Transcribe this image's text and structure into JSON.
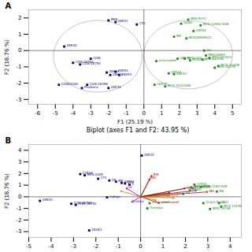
{
  "chart_data": [
    {
      "type": "scatter",
      "xlabel": "F1 (25.19 %)",
      "ylabel": "F2 (18.76 %)",
      "annotations": [
        "A"
      ],
      "xlim": [
        -6.5,
        5.5
      ],
      "ylim": [
        -3.3,
        2.5
      ],
      "xticks": [
        -6,
        -5,
        -4,
        -3,
        -2,
        -1,
        0,
        1,
        2,
        3,
        4,
        5
      ],
      "yticks": [
        -3,
        -2,
        -1,
        0,
        1,
        2
      ],
      "hlines": [
        0
      ],
      "vlines": [
        0
      ],
      "ellipses": [
        {
          "center": [
            -2.6,
            -0.35
          ],
          "rx": 2.5,
          "ry": 2.2,
          "color": "#aaaaaa"
        },
        {
          "center": [
            2.5,
            -0.25
          ],
          "rx": 2.5,
          "ry": 2.1,
          "color": "#aaaaaa"
        }
      ],
      "series": [
        {
          "color": "navy",
          "marker": "square",
          "x": [
            -4.8,
            -3.5,
            -3.2,
            -2.0,
            -4.0,
            -3.6,
            -4.5,
            -2.1,
            -1.9,
            -1.6,
            -1.4,
            -1.6,
            -0.4,
            -3.0,
            -2.0
          ],
          "y": [
            -2.1,
            -2.3,
            -2.1,
            -2.3,
            -0.75,
            -0.85,
            0.25,
            -1.35,
            -1.5,
            -1.3,
            -1.5,
            1.75,
            1.6,
            -0.5,
            1.85
          ],
          "labels": [
            "CGN20182",
            "Phulkara",
            "CGN-16356",
            "28534",
            "CGN-28762",
            "CGN-18750",
            "28540",
            "28933",
            "28934",
            "28553",
            "28953",
            "28531",
            "170",
            "CGN-",
            "MKS"
          ]
        },
        {
          "color": "#228B22",
          "marker": "square",
          "x": [
            2.5,
            2.1,
            3.2,
            2.8,
            1.7,
            2.4,
            3.7,
            3.3,
            2.6,
            0.7,
            4.2,
            4.0,
            0.6,
            1.2,
            1.4,
            1.7,
            1.9,
            2.3,
            3.5,
            3.4
          ],
          "y": [
            1.9,
            1.65,
            1.55,
            1.2,
            0.85,
            0.75,
            -0.45,
            -0.55,
            -0.6,
            -0.65,
            -0.95,
            -1.05,
            -2.1,
            -2.2,
            -1.4,
            -1.45,
            -0.5,
            -0.5,
            -0.3,
            0.0
          ],
          "labels": [
            "MKS-RLP1",
            "SAND",
            "MCS-12990-5GB",
            "28550",
            "MK",
            "MCS28985021",
            "MKS3823GO",
            "Sharpachad",
            "MCS1322",
            "onionsweet",
            "MCS-103GB",
            "MKS-16278",
            "28537",
            "MCS-301030W",
            "28520",
            "28553",
            "28516",
            "MKS1322",
            "MKS16993",
            "Var"
          ]
        }
      ]
    },
    {
      "type": "scatter",
      "title": "Biplot (axes F1 and F2: 43.95 %)",
      "ylabel": "F2 (18.76 %)",
      "annotations": [
        "B"
      ],
      "xlim": [
        -5.0,
        4.5
      ],
      "ylim": [
        -3.5,
        4.5
      ],
      "xticks": [
        -5,
        -4,
        -3,
        -2,
        -1,
        0,
        1,
        2,
        3,
        4
      ],
      "yticks": [
        -3,
        -2,
        -1,
        0,
        1,
        2,
        3,
        4
      ],
      "hlines": [
        0
      ],
      "vlines": [
        0
      ],
      "arrow_origin": [
        0.0,
        0.0
      ],
      "arrows": [
        {
          "x": 0.5,
          "y": 1.85,
          "color": "#cc0000",
          "label": "BW"
        },
        {
          "x": 0.4,
          "y": 1.55,
          "color": "#cc0000",
          "label": "BN"
        },
        {
          "x": 2.3,
          "y": 0.85,
          "color": "#228B22",
          "label": "MKS-ROPE"
        },
        {
          "x": 2.0,
          "y": 0.72,
          "color": "#cc0000",
          "label": "SAND"
        },
        {
          "x": 2.5,
          "y": 0.55,
          "color": "#8800cc"
        },
        {
          "x": 3.0,
          "y": 0.42,
          "color": "#cc0000",
          "label": "M6"
        },
        {
          "x": 1.8,
          "y": 0.32,
          "color": "#cc7700"
        },
        {
          "x": 1.3,
          "y": 0.1,
          "color": "#cc7700",
          "label": "Orig"
        },
        {
          "x": 1.5,
          "y": -0.1,
          "color": "#cc7700"
        },
        {
          "x": -0.65,
          "y": 0.75,
          "color": "#8800cc",
          "label": "OE"
        },
        {
          "x": -0.9,
          "y": 0.5,
          "color": "#cc7700"
        },
        {
          "x": 0.85,
          "y": -0.55,
          "color": "#cc0000",
          "label": "onionsweet"
        },
        {
          "x": -0.4,
          "y": -0.45,
          "color": "#8800cc",
          "label": "Indego"
        },
        {
          "x": 1.3,
          "y": 0.35,
          "color": "#8B0000"
        },
        {
          "x": 0.7,
          "y": -0.3,
          "color": "#cc7700"
        }
      ],
      "series": [
        {
          "color": "navy",
          "marker": "square",
          "x": [
            -4.5,
            -3.1,
            -2.9,
            -2.3,
            -1.5,
            -2.7,
            -2.5,
            -1.9,
            -1.4,
            -1.1,
            -0.85,
            -0.7,
            -0.5,
            0.05
          ],
          "y": [
            -0.35,
            -0.6,
            -0.7,
            -2.9,
            -0.05,
            1.95,
            1.85,
            1.55,
            1.4,
            1.3,
            1.2,
            1.15,
            1.05,
            3.55
          ],
          "labels": [
            "28540",
            "CGN-28762",
            "CGN-18750",
            "28283",
            "Indego",
            "24526",
            "MKS-2005",
            "171",
            "OE",
            "MK",
            "28553",
            "170",
            "1",
            "28532"
          ]
        },
        {
          "color": "#228B22",
          "marker": "square",
          "x": [
            0.4,
            0.3,
            2.8,
            3.5,
            3.1,
            3.6,
            1.9,
            3.4,
            2.2,
            2.3,
            2.7,
            2.4
          ],
          "y": [
            -0.55,
            -1.0,
            -0.55,
            -0.55,
            -1.05,
            -0.85,
            0.25,
            0.45,
            0.55,
            0.75,
            0.85,
            1.05
          ],
          "labels": [
            "onionsweet",
            "Harwiga",
            "Origin-Exotic",
            "3GO",
            "MKS-19198",
            "MCS-19198",
            "59",
            "M6",
            "SAND",
            "MKS-ROPE",
            "MCS-1280-5GB",
            "14530"
          ]
        }
      ]
    }
  ]
}
